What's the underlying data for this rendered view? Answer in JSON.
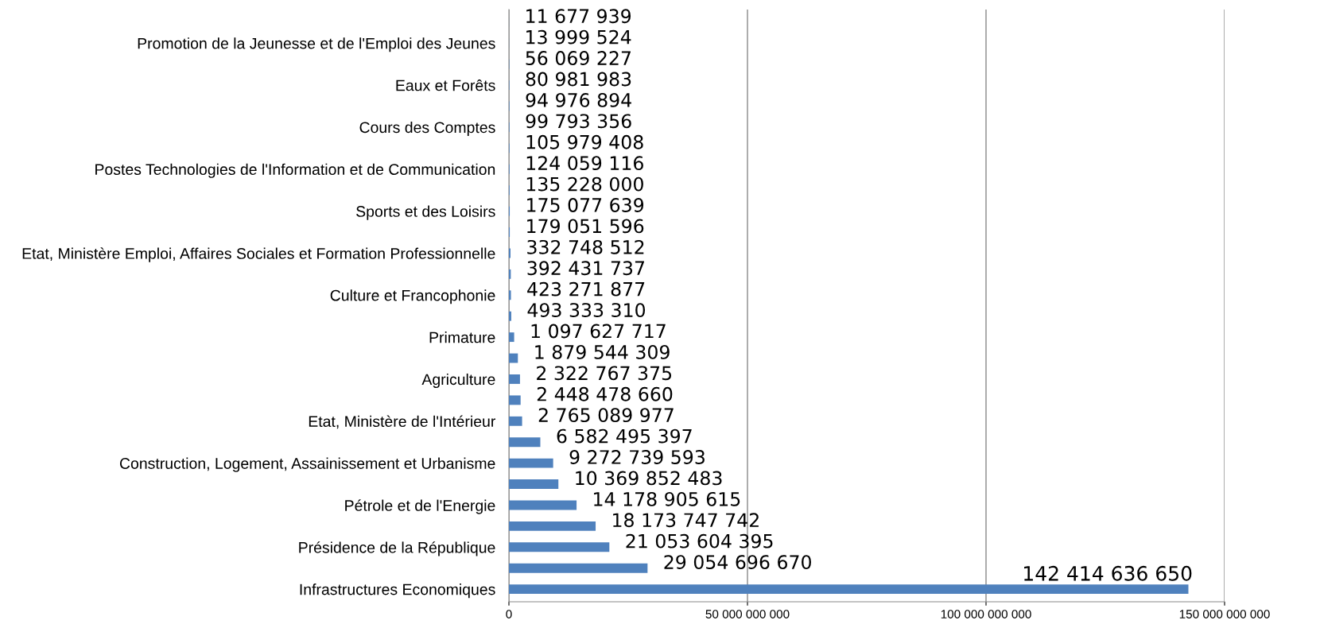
{
  "chart_data": {
    "type": "bar",
    "orientation": "horizontal",
    "categories": [
      null,
      "Promotion de la Jeunesse et de l'Emploi des Jeunes",
      null,
      "Eaux et Forêts",
      null,
      "Cours des Comptes",
      null,
      "Postes Technologies de l'Information et de Communication",
      null,
      "Sports et des Loisirs",
      null,
      "Etat, Ministère Emploi, Affaires Sociales et Formation Professionnelle",
      null,
      "Culture et Francophonie",
      null,
      "Primature",
      null,
      "Agriculture",
      null,
      "Etat, Ministère de l'Intérieur",
      null,
      "Construction, Logement, Assainissement et Urbanisme",
      null,
      "Pétrole et de l'Energie",
      null,
      "Présidence de la République",
      null,
      "Infrastructures Economiques"
    ],
    "values": [
      11677939,
      13999524,
      56069227,
      80981983,
      94976894,
      99793356,
      105979408,
      124059116,
      135228000,
      175077639,
      179051596,
      332748512,
      392431737,
      423271877,
      493333310,
      1097627717,
      1879544309,
      2322767375,
      2448478660,
      2765089977,
      6582495397,
      9272739593,
      10369852483,
      14178905615,
      18173747742,
      21053604395,
      29054696670,
      142414636650
    ],
    "value_labels": [
      "11 677 939",
      "13 999 524",
      "56 069 227",
      "80 981 983",
      "94 976 894",
      "99 793 356",
      "105 979 408",
      "124 059 116",
      "135 228 000",
      "175 077 639",
      "179 051 596",
      "332 748 512",
      "392 431 737",
      "423 271 877",
      "493 333 310",
      "1 097 627 717",
      "1 879 544 309",
      "2 322 767 375",
      "2 448 478 660",
      "2 765 089 977",
      "6 582 495 397",
      "9 272 739 593",
      "10 369 852 483",
      "14 178 905 615",
      "18 173 747 742",
      "21 053 604 395",
      "29 054 696 670",
      "142 414 636 650"
    ],
    "color": "#4f81bd",
    "xlim": [
      0,
      150000000000
    ],
    "xticks": [
      0,
      {
        "value": 50000000000,
        "label": "50 000 000 000"
      },
      {
        "value": 100000000000,
        "label": "100 000 000 000"
      },
      {
        "value": 150000000000,
        "label": "150 000 000 000"
      }
    ],
    "grid": "x"
  }
}
